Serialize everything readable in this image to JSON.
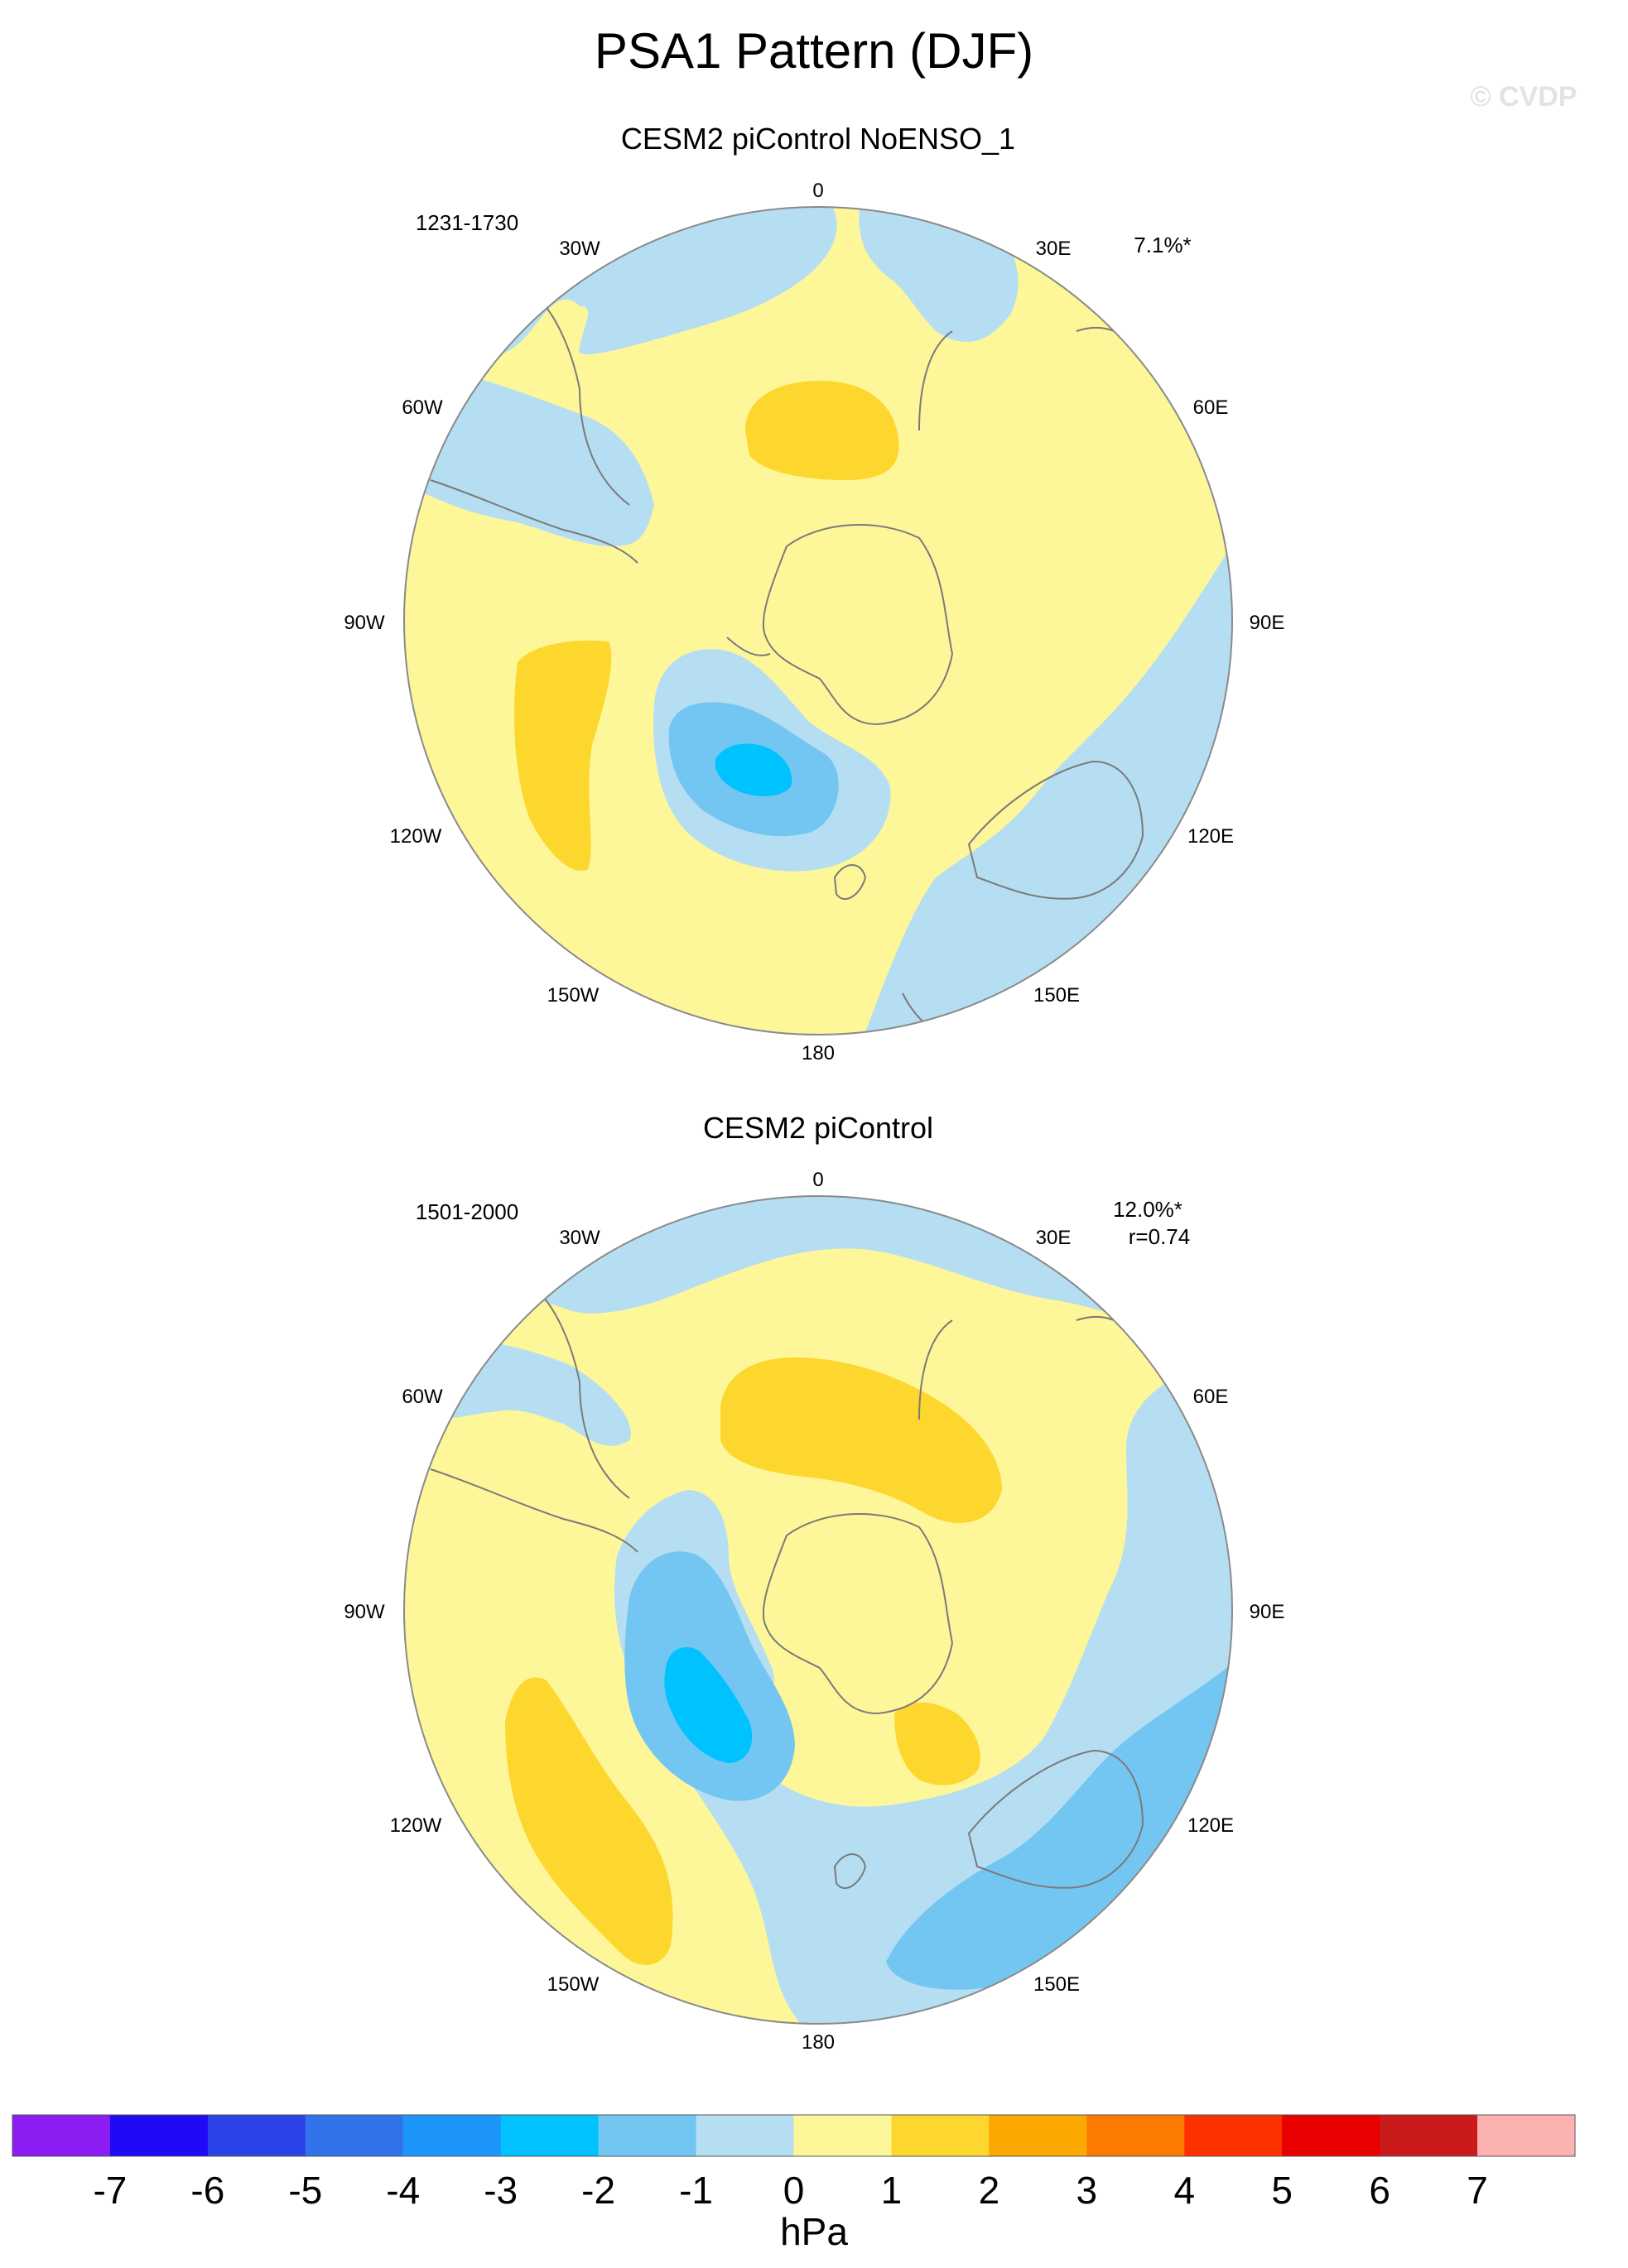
{
  "figure": {
    "title": "PSA1 Pattern (DJF)",
    "watermark": "© CVDP"
  },
  "panels": [
    {
      "title": "CESM2 piControl NoENSO_1",
      "years": "1231-1730",
      "pct_line1": "7.1%*",
      "pct_line2": "",
      "lon_labels": [
        "0",
        "30E",
        "60E",
        "90E",
        "120E",
        "150E",
        "180",
        "150W",
        "120W",
        "90W",
        "60W",
        "30W"
      ]
    },
    {
      "title": "CESM2 piControl",
      "years": "1501-2000",
      "pct_line1": "12.0%*",
      "pct_line2": "r=0.74",
      "lon_labels": [
        "0",
        "30E",
        "60E",
        "90E",
        "120E",
        "150E",
        "180",
        "150W",
        "120W",
        "90W",
        "60W",
        "30W"
      ]
    }
  ],
  "colorbar": {
    "unit": "hPa",
    "tick_labels": [
      "-7",
      "-6",
      "-5",
      "-4",
      "-3",
      "-2",
      "-1",
      "0",
      "1",
      "2",
      "3",
      "4",
      "5",
      "6",
      "7"
    ],
    "colors": [
      "#8b1cf2",
      "#1e0af5",
      "#2b42e9",
      "#3173ea",
      "#1c96fb",
      "#00c2fe",
      "#74c6f2",
      "#b5def2",
      "#fdf79a",
      "#fdd62e",
      "#fca800",
      "#fd7a00",
      "#fd3100",
      "#e80100",
      "#cb1a1b",
      "#fdb2b2"
    ]
  }
}
